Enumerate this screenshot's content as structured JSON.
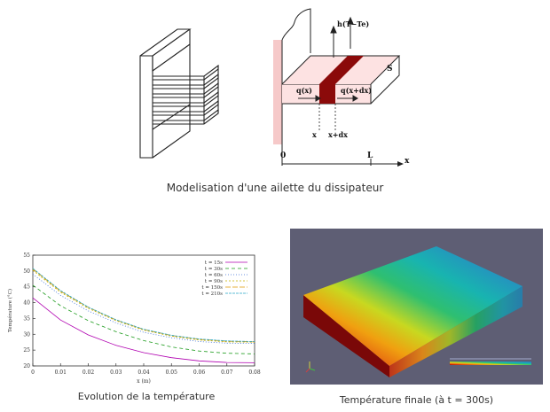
{
  "captions": {
    "top": "Modelisation d'une ailette du dissipateur",
    "chart": "Evolution de la température",
    "sim": "Température finale (à t = 300s)"
  },
  "fin_labels": {
    "h": "h(T−Te)",
    "S": "S",
    "qx": "q(x)",
    "qxdx": "q(x+dx)",
    "x": "x",
    "xdx": "x+dx",
    "zero": "0",
    "L": "L",
    "axis": "x"
  },
  "chart_data": {
    "type": "line",
    "xlabel": "x (m)",
    "ylabel": "Température (°C)",
    "xlim": [
      0,
      0.08
    ],
    "ylim": [
      20,
      55
    ],
    "xticks": [
      "0",
      "0.01",
      "0.02",
      "0.03",
      "0.04",
      "0.05",
      "0.06",
      "0.07",
      "0.08"
    ],
    "yticks": [
      "20",
      "25",
      "30",
      "35",
      "40",
      "45",
      "50",
      "55"
    ],
    "legend_position": "top-right",
    "x": [
      0,
      0.01,
      0.02,
      0.03,
      0.04,
      0.05,
      0.06,
      0.07,
      0.08
    ],
    "series": [
      {
        "name": "t = 15s",
        "color": "#b000b0",
        "dash": "",
        "values": [
          41.5,
          34.5,
          29.8,
          26.5,
          24.2,
          22.6,
          21.6,
          21.1,
          21.0
        ]
      },
      {
        "name": "t = 30s",
        "color": "#1a9a1a",
        "dash": "4,3",
        "values": [
          45.5,
          39.0,
          34.3,
          30.8,
          28.0,
          26.0,
          24.7,
          24.0,
          23.8
        ]
      },
      {
        "name": "t = 60s",
        "color": "#3b6fd8",
        "dash": "1,2",
        "values": [
          49.0,
          42.3,
          37.4,
          33.6,
          30.6,
          28.9,
          27.7,
          27.2,
          27.1
        ]
      },
      {
        "name": "t = 90s",
        "color": "#c8b400",
        "dash": "2,2",
        "values": [
          50.2,
          43.3,
          38.2,
          34.3,
          31.3,
          29.4,
          28.2,
          27.6,
          27.5
        ]
      },
      {
        "name": "t = 150s",
        "color": "#e09a00",
        "dash": "6,2",
        "values": [
          50.6,
          43.6,
          38.5,
          34.5,
          31.5,
          29.6,
          28.4,
          27.8,
          27.6
        ]
      },
      {
        "name": "t = 210s",
        "color": "#2aa6c8",
        "dash": "3,1",
        "values": [
          50.8,
          43.8,
          38.6,
          34.6,
          31.6,
          29.7,
          28.5,
          27.9,
          27.7
        ]
      }
    ]
  },
  "sim": {
    "background": "#5e5e74",
    "colors": [
      "#8b0a0a",
      "#e03a10",
      "#f0a010",
      "#c8d820",
      "#2fbf70",
      "#18b4b0",
      "#2690c0",
      "#2a70b8"
    ],
    "axes_triad": "Y Z X"
  }
}
